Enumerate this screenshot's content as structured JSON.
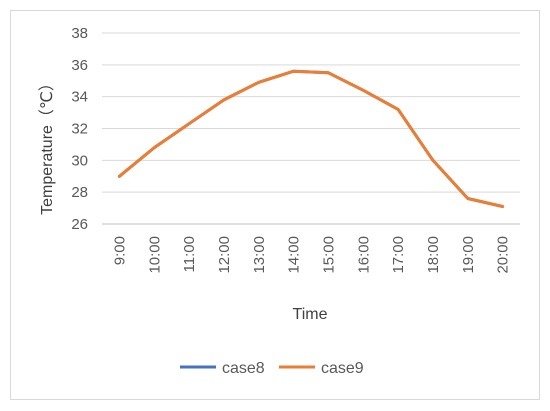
{
  "chart_data": {
    "type": "line",
    "title": "",
    "xlabel": "Time",
    "ylabel": "Temperature（℃）",
    "categories": [
      "9:00",
      "10:00",
      "11:00",
      "12:00",
      "13:00",
      "14:00",
      "15:00",
      "16:00",
      "17:00",
      "18:00",
      "19:00",
      "20:00"
    ],
    "yticks": [
      "26",
      "28",
      "30",
      "32",
      "34",
      "36",
      "38"
    ],
    "ylim": [
      26,
      38
    ],
    "grid": "horizontal",
    "legend_position": "bottom",
    "series": [
      {
        "name": "case8",
        "color": "#4472c4",
        "values": [
          29.0,
          30.8,
          32.3,
          33.8,
          34.9,
          35.6,
          35.5,
          34.4,
          33.2,
          30.0,
          27.6,
          27.1
        ]
      },
      {
        "name": "case9",
        "color": "#ed7d31",
        "values": [
          29.0,
          30.8,
          32.3,
          33.8,
          34.9,
          35.6,
          35.5,
          34.4,
          33.2,
          30.0,
          27.6,
          27.1
        ]
      }
    ]
  }
}
